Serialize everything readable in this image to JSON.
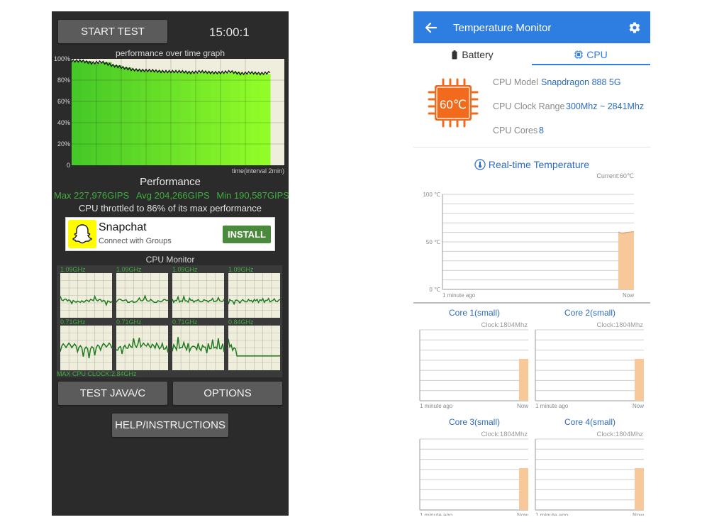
{
  "left": {
    "start_test_label": "START TEST",
    "timer": "15:00:1",
    "graph_title": "performance over time graph",
    "y_ticks": [
      "100%",
      "80%",
      "60%",
      "40%",
      "20%",
      "0"
    ],
    "x_label": "time(interval 2min)",
    "perf_title": "Performance",
    "max_label": "Max 227,976GIPS",
    "avg_label": "Avg 204,266GIPS",
    "min_label": "Min 190,587GIPS",
    "throttle_text": "CPU throttled to 86% of its max performance",
    "ad": {
      "title": "Snapchat",
      "subtitle": "Connect with Groups",
      "install_label": "INSTALL"
    },
    "cpu_monitor_title": "CPU Monitor",
    "core_clocks": [
      "1.09GHz",
      "1.09GHz",
      "1.09GHz",
      "1.09GHz",
      "0.71GHz",
      "0.71GHz",
      "0.71GHz",
      "0.84GHz"
    ],
    "max_cpu_clock": "MAX CPU CLOCK:2.84GHz",
    "test_java_label": "TEST JAVA/C",
    "options_label": "OPTIONS",
    "help_label": "HELP/INSTRUCTIONS",
    "colors": {
      "bg": "#2b2b2b",
      "accent_green": "#3fae3f",
      "button": "#5b5b5b"
    }
  },
  "right": {
    "app_title": "Temperature Monitor",
    "tab_battery": "Battery",
    "tab_cpu": "CPU",
    "chip_temp": "60℃",
    "cpu_model_key": "CPU Model",
    "cpu_model_val": "Snapdragon 888 5G",
    "clock_range_key": "CPU Clock Range",
    "clock_range_val": "300Mhz ~ 2841Mhz",
    "cores_key": "CPU Cores",
    "cores_val": "8",
    "realtime_title": "Real-time Temperature",
    "current_label": "Current:60℃",
    "temp_ticks": [
      "100 ℃",
      "50 ℃",
      "0 ℃"
    ],
    "x_start": "1 minute ago",
    "x_end": "Now",
    "cores": [
      {
        "name": "Core 1(small)",
        "clock": "Clock:1804Mhz"
      },
      {
        "name": "Core 2(small)",
        "clock": "Clock:1804Mhz"
      },
      {
        "name": "Core 3(small)",
        "clock": "Clock:1804Mhz"
      },
      {
        "name": "Core 4(small)",
        "clock": "Clock:1804Mhz"
      }
    ],
    "colors": {
      "appbar": "#2e7de1",
      "link": "#2e6bc2",
      "chip": "#f26a1b",
      "bar": "#f7c99a"
    }
  },
  "chart_data": [
    {
      "type": "area",
      "title": "performance over time graph",
      "xlabel": "time(interval 2min)",
      "ylabel": "",
      "ylim": [
        0,
        100
      ],
      "y_unit": "%",
      "x": [
        0,
        4,
        8,
        12,
        16,
        20,
        24,
        28,
        32,
        36,
        40,
        44,
        48,
        52,
        56,
        60,
        64,
        68,
        72,
        76,
        80
      ],
      "values": [
        98,
        98,
        96,
        97,
        94,
        92,
        90,
        89,
        89,
        88,
        88,
        88,
        87,
        88,
        87,
        87,
        88,
        86,
        87,
        86,
        87
      ],
      "grid": true
    },
    {
      "type": "area",
      "title": "Real-time Temperature",
      "ylim": [
        0,
        100
      ],
      "y_unit": "℃",
      "x": [
        "1 minute ago",
        "Now"
      ],
      "values": [
        null,
        60
      ]
    }
  ]
}
